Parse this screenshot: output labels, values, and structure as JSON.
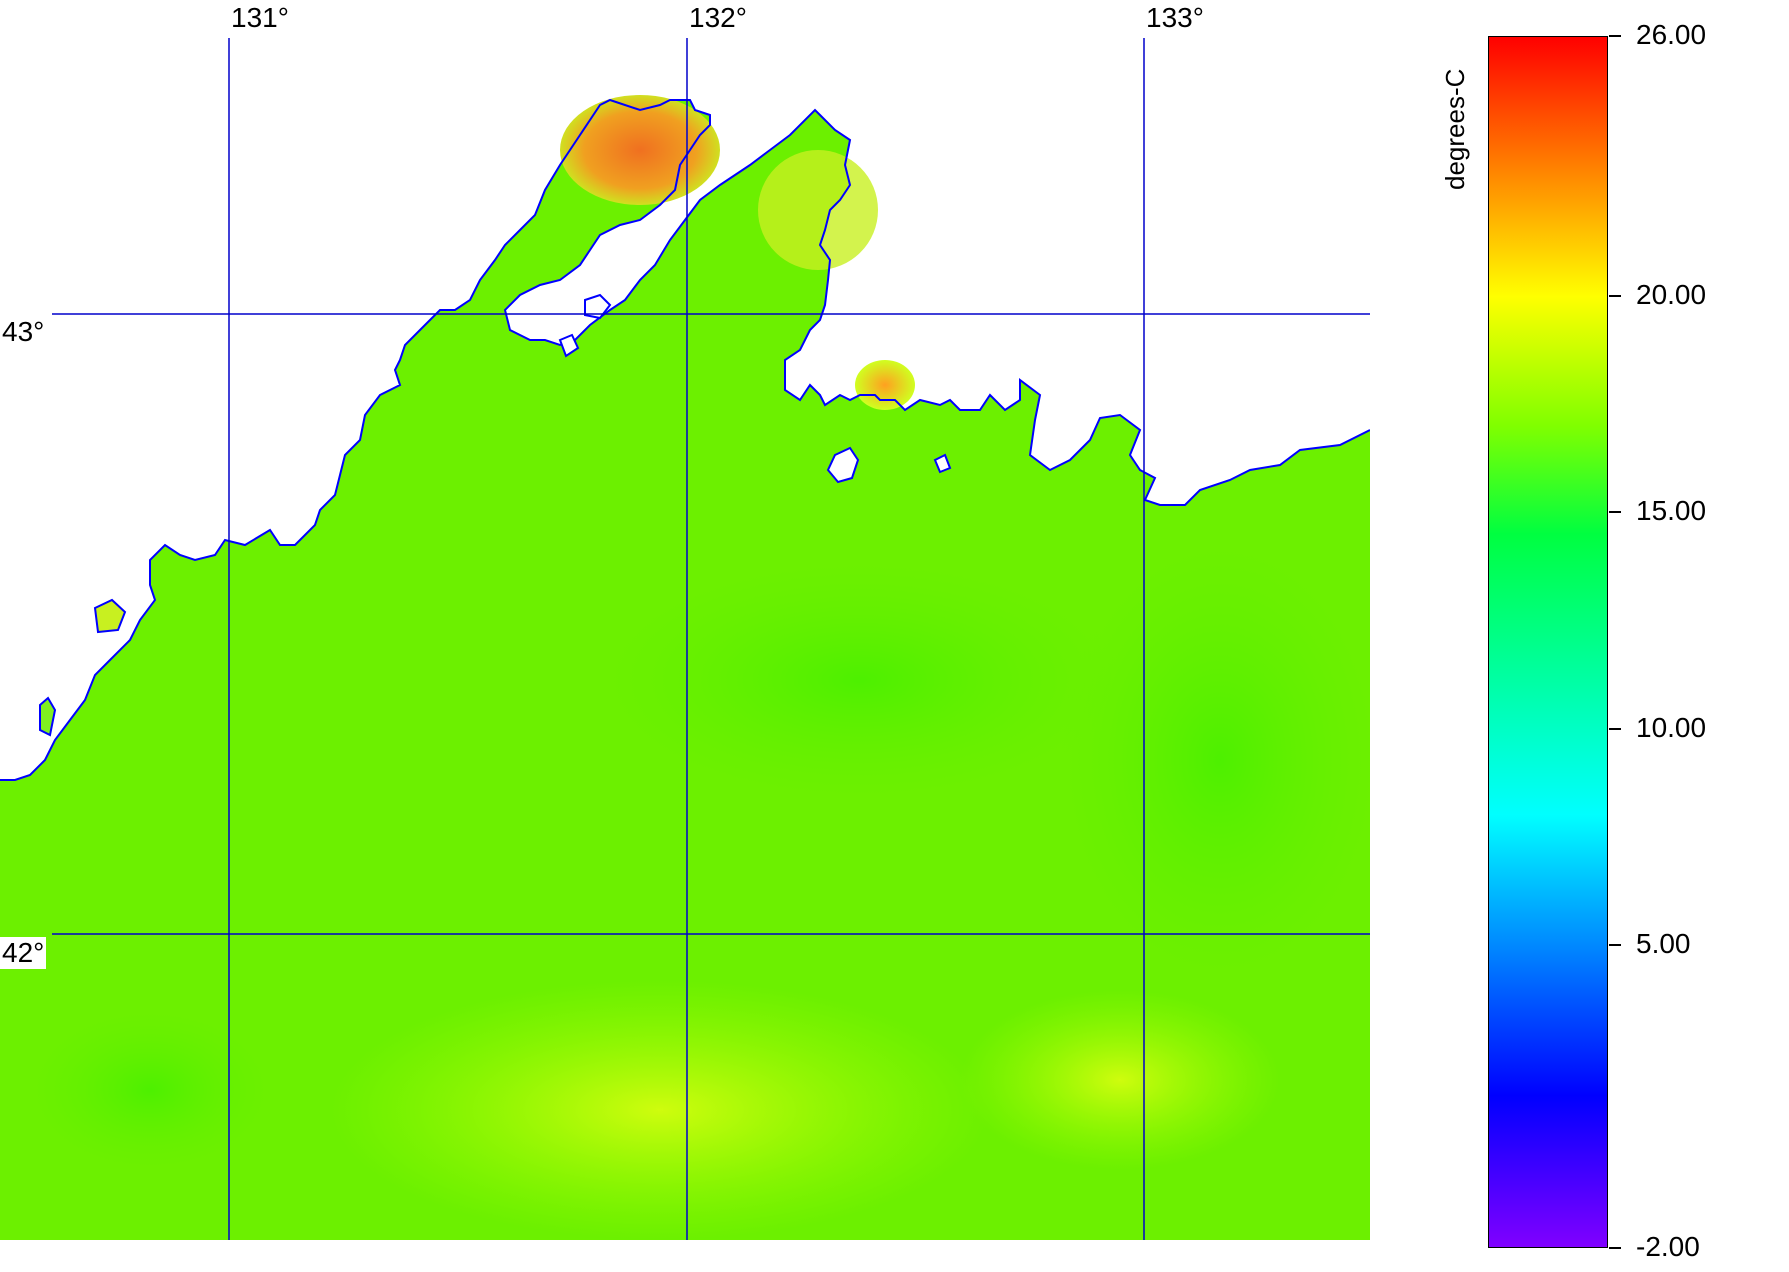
{
  "map": {
    "longitude_labels": [
      "131°",
      "132°",
      "133°"
    ],
    "latitude_labels": [
      "43°",
      "42°"
    ],
    "colors": {
      "land": "#ffffff",
      "coastline": "#0000ff",
      "graticule": "#0000cc"
    }
  },
  "colorbar": {
    "units": "degrees-C",
    "min": -2.0,
    "max": 26.0,
    "tick_labels": [
      "26.00",
      "20.00",
      "15.00",
      "10.00",
      "5.00",
      "-2.00"
    ],
    "tick_values": [
      26,
      20,
      15,
      10,
      5,
      -2
    ],
    "colormap": [
      "#8000ff",
      "#0000ff",
      "#00ffff",
      "#00ff40",
      "#80ff00",
      "#ffff00",
      "#ff8000",
      "#ff0000"
    ]
  },
  "sea_surface_temperature": {
    "dominant_range": [
      15,
      20
    ],
    "warm_area_values": [
      22,
      23,
      24
    ]
  }
}
